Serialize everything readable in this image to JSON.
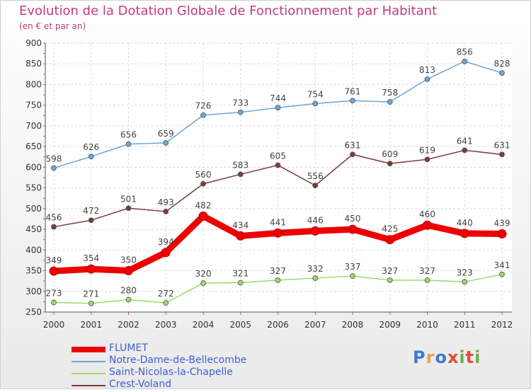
{
  "title": "Evolution de la Dotation Globale de Fonctionnement par Habitant",
  "subtitle": "(en € et par an)",
  "logo": "Proxiti",
  "chart_data": {
    "type": "line",
    "title": "Evolution de la Dotation Globale de Fonctionnement par Habitant",
    "subtitle": "(en € et par an)",
    "xlabel": "",
    "ylabel": "",
    "ylim": [
      250,
      900
    ],
    "yticks": [
      250,
      300,
      350,
      400,
      450,
      500,
      550,
      600,
      650,
      700,
      750,
      800,
      850,
      900
    ],
    "grid": true,
    "legend_position": "bottom-left",
    "categories": [
      "2000",
      "2001",
      "2002",
      "2003",
      "2004",
      "2005",
      "2006",
      "2007",
      "2008",
      "2009",
      "2010",
      "2011",
      "2012"
    ],
    "series": [
      {
        "name": "FLUMET",
        "color": "#ee0000",
        "emphasis": true,
        "values": [
          349,
          354,
          350,
          394,
          482,
          434,
          441,
          446,
          450,
          425,
          460,
          440,
          439
        ]
      },
      {
        "name": "Notre-Dame-de-Bellecombe",
        "color": "#6da7d6",
        "emphasis": false,
        "values": [
          598,
          626,
          656,
          659,
          726,
          733,
          744,
          754,
          761,
          758,
          813,
          856,
          828
        ]
      },
      {
        "name": "Saint-Nicolas-la-Chapelle",
        "color": "#9ed86a",
        "emphasis": false,
        "values": [
          273,
          271,
          280,
          272,
          320,
          321,
          327,
          332,
          337,
          327,
          327,
          323,
          341
        ]
      },
      {
        "name": "Crest-Voland",
        "color": "#7a3b3b",
        "emphasis": false,
        "values": [
          456,
          472,
          501,
          493,
          560,
          583,
          605,
          556,
          631,
          609,
          619,
          641,
          631
        ]
      }
    ]
  }
}
